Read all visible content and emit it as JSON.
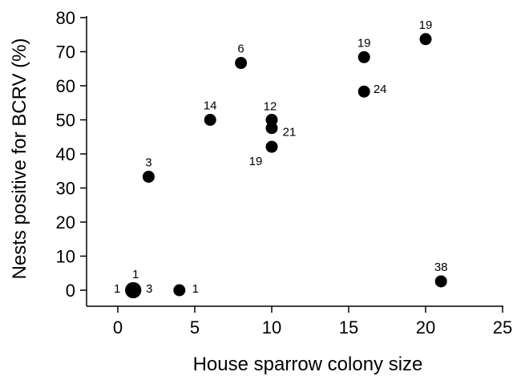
{
  "chart_data": {
    "type": "scatter",
    "title": "",
    "xlabel": "House sparrow colony size",
    "ylabel": "Nests positive for BCRV (%)",
    "xlim": [
      -2,
      25
    ],
    "ylim": [
      -2,
      80
    ],
    "x_ticks": [
      0,
      5,
      10,
      15,
      20,
      25
    ],
    "y_ticks": [
      0,
      10,
      20,
      30,
      40,
      50,
      60,
      70,
      80
    ],
    "grid": false,
    "legend": "none",
    "marker_color": "#000000",
    "points": [
      {
        "x": 1,
        "y": 0,
        "label": "1",
        "size": "large"
      },
      {
        "x": 1,
        "y": 0,
        "label": "1",
        "size": "large"
      },
      {
        "x": 1,
        "y": 0,
        "label": "3",
        "size": "large"
      },
      {
        "x": 4,
        "y": 0,
        "label": "1",
        "size": "normal"
      },
      {
        "x": 2,
        "y": 33.3,
        "label": "3",
        "size": "normal"
      },
      {
        "x": 6,
        "y": 50,
        "label": "14",
        "size": "normal"
      },
      {
        "x": 8,
        "y": 66.7,
        "label": "6",
        "size": "normal"
      },
      {
        "x": 10,
        "y": 50,
        "label": "12",
        "size": "normal"
      },
      {
        "x": 10,
        "y": 47.6,
        "label": "21",
        "size": "normal"
      },
      {
        "x": 10,
        "y": 42.1,
        "label": "19",
        "size": "normal"
      },
      {
        "x": 16,
        "y": 68.4,
        "label": "19",
        "size": "normal"
      },
      {
        "x": 16,
        "y": 58.3,
        "label": "24",
        "size": "normal"
      },
      {
        "x": 20,
        "y": 73.7,
        "label": "19",
        "size": "normal"
      },
      {
        "x": 21,
        "y": 2.6,
        "label": "38",
        "size": "normal"
      }
    ]
  }
}
